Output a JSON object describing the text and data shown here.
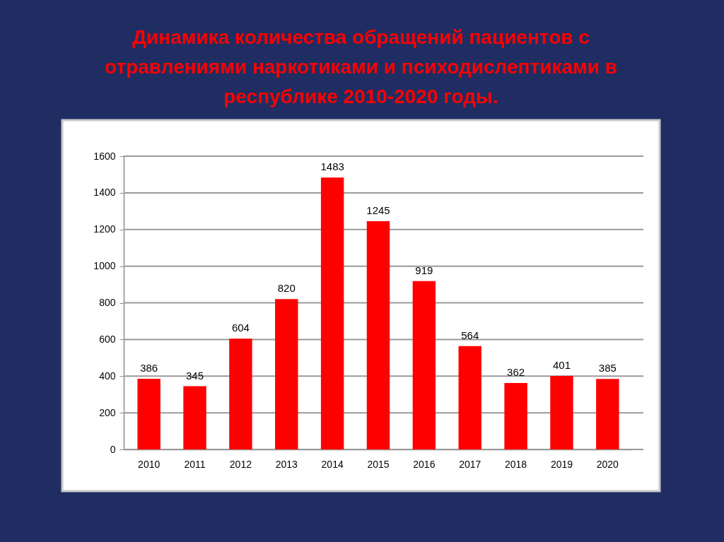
{
  "chart_data": {
    "type": "bar",
    "title": "Динамика количества обращений пациентов с отравлениями наркотиками и психодислептиками в республике 2010-2020 годы.",
    "categories": [
      "2010",
      "2011",
      "2012",
      "2013",
      "2014",
      "2015",
      "2016",
      "2017",
      "2018",
      "2019",
      "2020"
    ],
    "values": [
      386,
      345,
      604,
      820,
      1483,
      1245,
      919,
      564,
      362,
      401,
      385
    ],
    "color": "#ff0000",
    "ylim": [
      0,
      1600
    ],
    "yticks": [
      0,
      200,
      400,
      600,
      800,
      1000,
      1200,
      1400,
      1600
    ],
    "grid": "y",
    "data_labels": true
  }
}
